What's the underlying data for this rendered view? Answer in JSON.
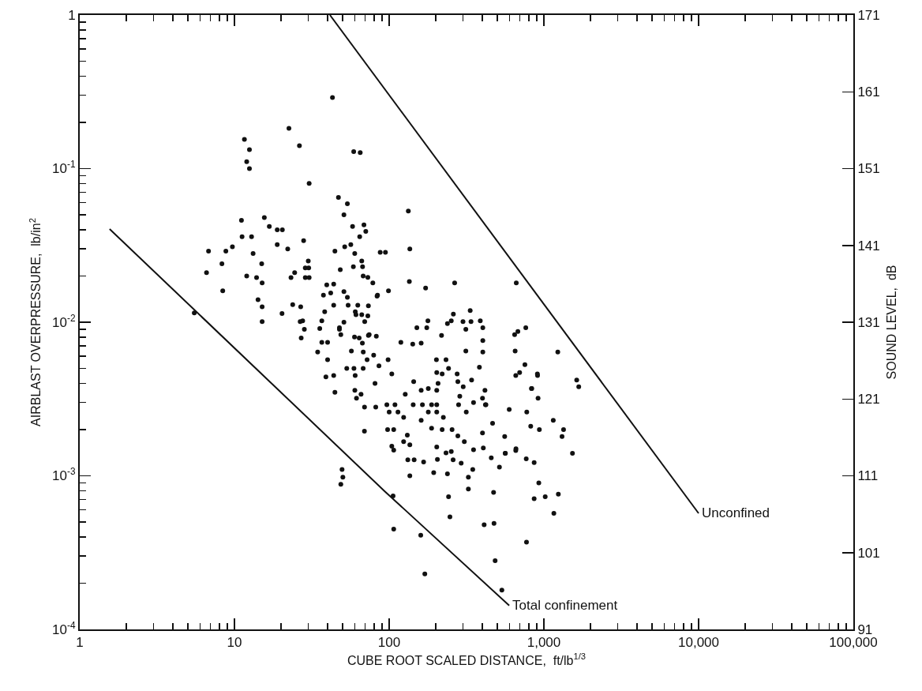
{
  "chart_data": {
    "type": "scatter",
    "xlabel": "CUBE ROOT SCALED DISTANCE,  ft/lb$^{1/3}$",
    "ylabel": "AIRBLAST OVERPRESSURE,  lb/in$^{2}$",
    "y2label": "SOUND LEVEL,  dB",
    "log": "xy",
    "grid": false,
    "marker": "circle",
    "xlim": [
      1,
      100000
    ],
    "xticks": [
      1,
      10,
      100,
      {
        "value": 1000,
        "label": "1,000"
      },
      {
        "value": 10000,
        "label": "10,000"
      },
      {
        "value": 100000,
        "label": "100,000"
      }
    ],
    "ylim": [
      0.0001,
      1
    ],
    "yticks": [
      {
        "value": 0.0001,
        "label": "10$^{-4}$"
      },
      {
        "value": 0.001,
        "label": "10$^{-3}$"
      },
      {
        "value": 0.01,
        "label": "10$^{-2}$"
      },
      {
        "value": 0.1,
        "label": "10$^{-1}$"
      },
      1
    ],
    "y2lim": [
      91,
      171
    ],
    "y2ticks": [
      91,
      101,
      111,
      121,
      131,
      141,
      151,
      161,
      171
    ],
    "annotations": [
      {
        "text": "Unconfined",
        "x": 10000,
        "y": 0.00057
      },
      {
        "text": "Total confinement",
        "x": 597,
        "y": 0.000143
      }
    ],
    "series": [
      {
        "color": "#111111",
        "x": [
          43,
          11.6,
          12.5,
          12,
          12.5,
          22.5,
          26.3,
          59,
          65,
          30.4,
          47,
          53.7,
          51,
          58,
          68.7,
          70.6,
          64.5,
          28,
          11.1,
          15.6,
          16.8,
          18.9,
          20.4,
          11.2,
          12.9,
          6.8,
          6.6,
          8.3,
          8.8,
          9.7,
          8.4,
          13.2,
          15,
          12,
          13.9,
          15.1,
          14.2,
          15.1,
          15.1,
          18.9,
          22.1,
          23.2,
          24.5,
          23.8,
          26.8,
          20.3,
          26.6,
          28.3,
          30,
          28.7,
          30.2,
          28.7,
          30.4,
          44.6,
          51.6,
          56.5,
          59.9,
          48.3,
          58.7,
          66.5,
          67.3,
          67.9,
          72.8,
          78.4,
          84.1,
          87.5,
          94.6,
          5.5,
          39.5,
          43.8,
          37.6,
          41.9,
          43.8,
          38.3,
          36.7,
          35.6,
          36.7,
          40,
          51,
          53.7,
          54.3,
          62.7,
          73.4,
          51,
          47.7,
          82.6,
          74.3,
          60.4,
          135,
          172,
          265,
          663,
          99,
          83.5,
          260,
          334,
          238,
          252,
          300,
          338,
          388,
          313,
          403,
          403,
          403,
          313,
          383,
          178,
          151,
          175,
          218,
          647,
          679,
          764,
          652,
          1230,
          754,
          658,
          697,
          910,
          831,
          1630,
          1680,
          917,
          597,
          775,
          1150,
          1340,
          1310,
          822,
          935,
          558,
          466,
          1530,
          927,
          865,
          1020,
          1240,
          1160,
          473,
          325,
          325,
          347,
          242,
          247,
          194,
          136,
          238,
          132,
          145,
          167,
          205,
          259,
          292,
          516,
          457,
          769,
          865,
          562,
          658,
          49.6,
          50.2,
          48.7,
          69.2,
          97.7,
          107,
          104,
          107,
          131,
          124,
          136,
          188,
          220,
          255,
          278,
          306,
          351,
          406,
          203,
          233,
          252,
          34.5,
          40,
          39,
          43.8,
          44.6,
          60,
          65.8,
          61.5,
          69.3,
          81.9,
          53.2,
          59.2,
          67.9,
          60.3,
          72,
          81,
          85.9,
          98.4,
          104,
          127,
          144,
          161,
          179,
          203,
          143,
          164,
          188,
          203,
          96.6,
          109,
          100,
          114,
          124,
          179,
          203,
          224,
          161,
          119,
          142,
          161,
          202,
          233,
          203,
          220,
          207,
          242,
          275,
          278,
          301,
          341,
          286,
          281,
          315,
          351,
          419,
          416,
          908,
          835,
          660,
          564,
          411,
          476,
          772,
          401,
          422,
          401,
          106,
          107,
          160,
          170,
          484,
          535,
          133,
          136,
          61,
          66.5,
          72.8,
          69.5,
          47.7,
          48.7,
          59.7,
          64,
          67.1,
          73.4,
          57,
          68,
          79.4,
          27,
          27.6
        ],
        "values": [
          0.29,
          0.155,
          0.133,
          0.111,
          0.1,
          0.183,
          0.141,
          0.129,
          0.127,
          0.08,
          0.065,
          0.059,
          0.05,
          0.042,
          0.043,
          0.039,
          0.036,
          0.034,
          0.046,
          0.048,
          0.042,
          0.04,
          0.04,
          0.036,
          0.036,
          0.029,
          0.021,
          0.024,
          0.029,
          0.031,
          0.016,
          0.028,
          0.024,
          0.02,
          0.0195,
          0.018,
          0.014,
          0.0126,
          0.0101,
          0.032,
          0.03,
          0.0195,
          0.021,
          0.013,
          0.0126,
          0.0114,
          0.0101,
          0.009,
          0.025,
          0.0226,
          0.0226,
          0.0195,
          0.0195,
          0.029,
          0.031,
          0.032,
          0.028,
          0.022,
          0.023,
          0.025,
          0.023,
          0.02,
          0.0196,
          0.018,
          0.015,
          0.0285,
          0.0285,
          0.0115,
          0.0175,
          0.0177,
          0.015,
          0.0155,
          0.0129,
          0.0117,
          0.0102,
          0.0091,
          0.0074,
          0.0074,
          0.0158,
          0.0145,
          0.0129,
          0.0129,
          0.0128,
          0.01,
          0.0092,
          0.0081,
          0.0083,
          0.0117,
          0.0184,
          0.0167,
          0.018,
          0.018,
          0.016,
          0.0148,
          0.0113,
          0.0119,
          0.0098,
          0.0102,
          0.0101,
          0.0101,
          0.0102,
          0.009,
          0.0092,
          0.0076,
          0.0064,
          0.0065,
          0.0051,
          0.0102,
          0.0092,
          0.0092,
          0.0082,
          0.0083,
          0.0087,
          0.0092,
          0.0065,
          0.0064,
          0.0053,
          0.0045,
          0.0047,
          0.0045,
          0.0037,
          0.0042,
          0.0038,
          0.0032,
          0.0027,
          0.0026,
          0.0023,
          0.002,
          0.0018,
          0.0021,
          0.002,
          0.0018,
          0.0022,
          0.0014,
          0.0009,
          0.00071,
          0.00073,
          0.00076,
          0.00057,
          0.00078,
          0.00082,
          0.00098,
          0.0011,
          0.00073,
          0.00054,
          0.00105,
          0.001,
          0.00103,
          0.00127,
          0.00127,
          0.00123,
          0.00128,
          0.00127,
          0.00121,
          0.00114,
          0.00131,
          0.00129,
          0.00122,
          0.0014,
          0.00146,
          0.0011,
          0.00098,
          0.00088,
          0.00195,
          0.002,
          0.002,
          0.00156,
          0.00147,
          0.00184,
          0.00167,
          0.00159,
          0.00204,
          0.002,
          0.002,
          0.00182,
          0.00167,
          0.00148,
          0.00152,
          0.00154,
          0.00141,
          0.00144,
          0.0064,
          0.0057,
          0.0044,
          0.0045,
          0.0035,
          0.0036,
          0.0034,
          0.0032,
          0.0028,
          0.0028,
          0.005,
          0.005,
          0.005,
          0.0045,
          0.0057,
          0.004,
          0.0052,
          0.0057,
          0.0046,
          0.0034,
          0.0041,
          0.0036,
          0.0037,
          0.0036,
          0.0029,
          0.0029,
          0.0029,
          0.0029,
          0.0029,
          0.0029,
          0.0026,
          0.0026,
          0.0024,
          0.0026,
          0.0026,
          0.0024,
          0.0023,
          0.0074,
          0.0072,
          0.0073,
          0.0057,
          0.0057,
          0.0047,
          0.0046,
          0.004,
          0.005,
          0.0046,
          0.0041,
          0.0038,
          0.0042,
          0.0033,
          0.0029,
          0.0026,
          0.003,
          0.0029,
          0.0036,
          0.0046,
          0.0037,
          0.0015,
          0.0014,
          0.00048,
          0.00049,
          0.00037,
          0.0032,
          0.0029,
          0.0019,
          0.00074,
          0.00045,
          0.00041,
          0.00023,
          0.00028,
          0.00018,
          0.053,
          0.03,
          0.0112,
          0.0112,
          0.011,
          0.0101,
          0.009,
          0.0083,
          0.008,
          0.0079,
          0.0073,
          0.0082,
          0.0065,
          0.0064,
          0.0061,
          0.0079,
          0.0102
        ]
      },
      {
        "type": "line",
        "marker": "none",
        "color": "#111111",
        "x": [
          1.56,
          94,
          597
        ],
        "values": [
          0.0404,
          0.00079,
          0.000143
        ]
      },
      {
        "type": "line",
        "marker": "none",
        "color": "#111111",
        "x": [
          41.4,
          10000
        ],
        "values": [
          1,
          0.00057
        ]
      }
    ]
  }
}
